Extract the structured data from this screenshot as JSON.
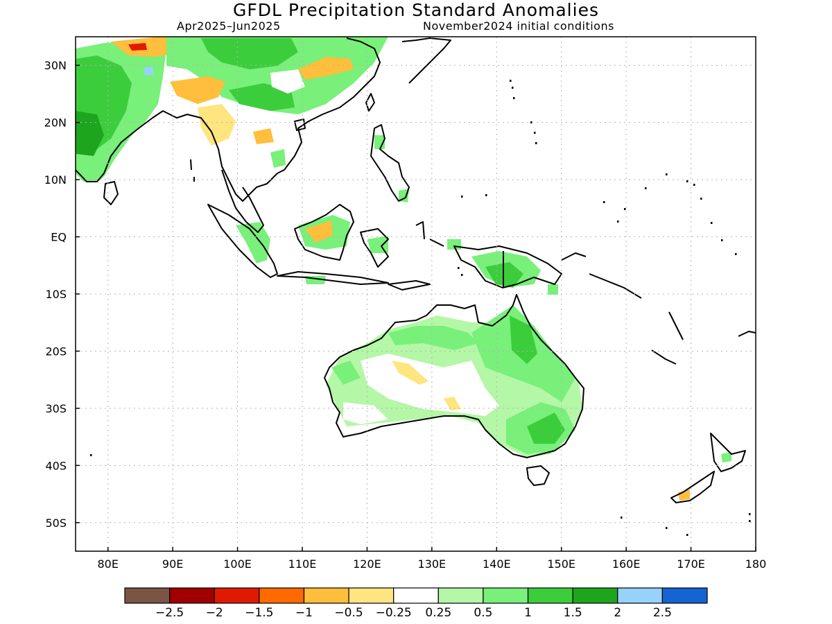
{
  "title": "GFDL Precipitation Standard Anomalies",
  "subtitle_left": "Apr2025–Jun2025",
  "subtitle_right": "November2024 initial conditions",
  "map": {
    "lon_range": [
      75,
      180
    ],
    "lat_range": [
      -55,
      35
    ],
    "lat_ticks": [
      {
        "value": 30,
        "label": "30N"
      },
      {
        "value": 20,
        "label": "20N"
      },
      {
        "value": 10,
        "label": "10N"
      },
      {
        "value": 0,
        "label": "EQ"
      },
      {
        "value": -10,
        "label": "10S"
      },
      {
        "value": -20,
        "label": "20S"
      },
      {
        "value": -30,
        "label": "30S"
      },
      {
        "value": -40,
        "label": "40S"
      },
      {
        "value": -50,
        "label": "50S"
      }
    ],
    "lon_ticks": [
      {
        "value": 80,
        "label": "80E"
      },
      {
        "value": 90,
        "label": "90E"
      },
      {
        "value": 100,
        "label": "100E"
      },
      {
        "value": 110,
        "label": "110E"
      },
      {
        "value": 120,
        "label": "120E"
      },
      {
        "value": 130,
        "label": "130E"
      },
      {
        "value": 140,
        "label": "140E"
      },
      {
        "value": 150,
        "label": "150E"
      },
      {
        "value": 160,
        "label": "160E"
      },
      {
        "value": 170,
        "label": "170E"
      },
      {
        "value": 180,
        "label": "180"
      }
    ],
    "grid": true,
    "grid_style": "dotted"
  },
  "colorbar": {
    "colors": [
      "#7a5545",
      "#a00000",
      "#e01a00",
      "#ff6a00",
      "#ffbe3c",
      "#ffe580",
      "#ffffff",
      "#b4f7a6",
      "#78f07a",
      "#3ccd3c",
      "#1ea51e",
      "#96d2fa",
      "#1464d2"
    ],
    "labels": [
      "−2.5",
      "−2",
      "−1.5",
      "−1",
      "−0.5",
      "−0.25",
      "0.25",
      "0.5",
      "1",
      "1.5",
      "2",
      "2.5"
    ]
  },
  "colors": {
    "strong_wet": "#1ea51e",
    "wet": "#3ccd3c",
    "moderate_wet": "#78f07a",
    "light_wet": "#b4f7a6",
    "light_dry": "#ffe580",
    "dry": "#ffbe3c",
    "strong_dry": "#ff6a00",
    "very_dry": "#e01a00",
    "very_wet": "#96d2fa"
  }
}
